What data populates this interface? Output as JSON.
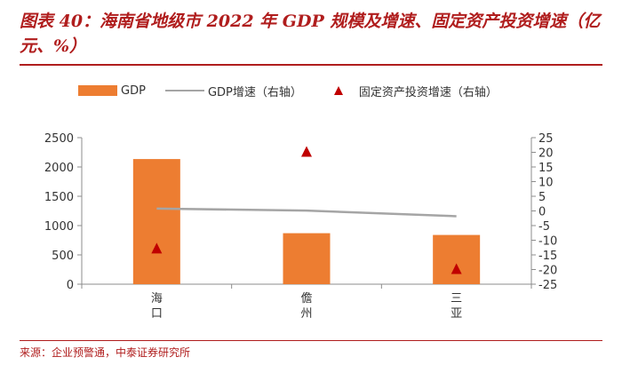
{
  "title": "图表 40：海南省地级市 2022 年 GDP 规模及增速、固定资产投资增速（亿元、%）",
  "source": "来源：企业预警通，中泰证券研究所",
  "colors": {
    "bar": "#ed7d31",
    "line": "#a5a5a5",
    "marker": "#c00000",
    "accent": "#b01d1d"
  },
  "chart_data": {
    "type": "bar",
    "categories": [
      "海口",
      "儋州",
      "三亚"
    ],
    "series": [
      {
        "name": "GDP",
        "kind": "bar",
        "axis": "left",
        "values": [
          2135,
          870,
          840
        ]
      },
      {
        "name": "GDP增速（右轴）",
        "kind": "line",
        "axis": "right",
        "values": [
          0.8,
          0.1,
          -1.8
        ]
      },
      {
        "name": "固定资产投资增速（右轴）",
        "kind": "marker",
        "axis": "right",
        "values": [
          -13,
          20,
          -20
        ]
      }
    ],
    "ylim": [
      0,
      2500
    ],
    "yticks": [
      0,
      500,
      1000,
      1500,
      2000,
      2500
    ],
    "y2lim": [
      -25,
      25
    ],
    "y2ticks": [
      -25,
      -20,
      -15,
      -10,
      -5,
      0,
      5,
      10,
      15,
      20,
      25
    ],
    "legend_position": "top"
  }
}
